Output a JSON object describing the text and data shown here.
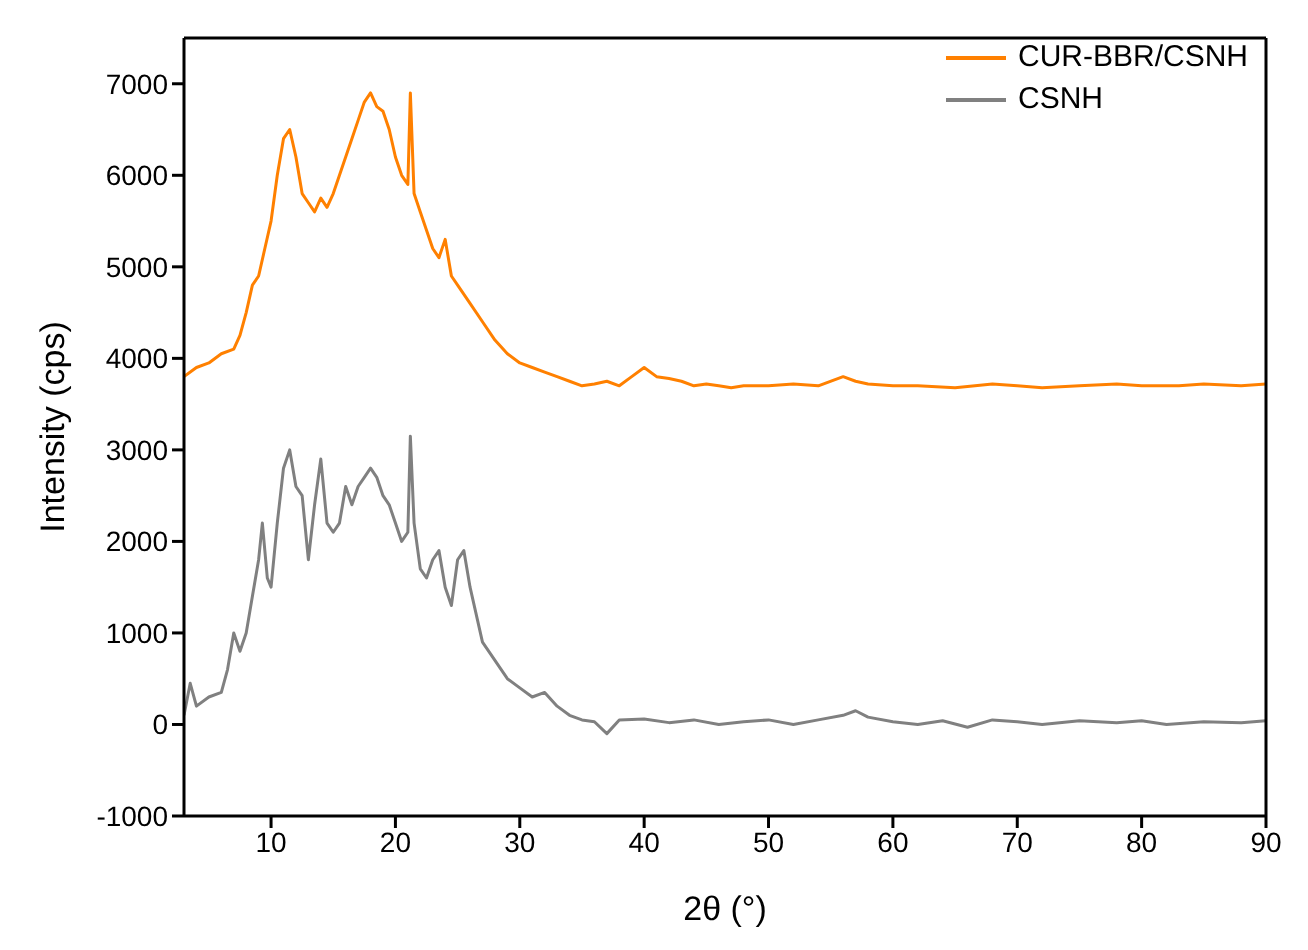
{
  "chart_data": {
    "type": "line",
    "xlabel": "2θ (°)",
    "ylabel": "Intensity (cps)",
    "xlim": [
      3,
      90
    ],
    "xticks": [
      10,
      20,
      30,
      40,
      50,
      60,
      70,
      80,
      90
    ],
    "ylim": [
      -1000,
      7500
    ],
    "yticks": [
      -1000,
      0,
      1000,
      2000,
      3000,
      4000,
      5000,
      6000,
      7000
    ],
    "legend": "top right",
    "marker": "none",
    "line_style": "solid",
    "series": [
      {
        "name": "CUR-BBR/CSNH",
        "color": "#ff8000",
        "x": [
          3,
          4,
          5,
          6,
          7,
          7.5,
          8,
          8.5,
          9,
          9.5,
          10,
          10.5,
          11,
          11.5,
          12,
          12.5,
          13,
          13.5,
          14,
          14.5,
          15,
          15.5,
          16,
          16.5,
          17,
          17.5,
          18,
          18.5,
          19,
          19.5,
          20,
          20.5,
          21,
          21.2,
          21.5,
          22,
          22.5,
          23,
          23.5,
          24,
          24.5,
          25,
          26,
          27,
          28,
          29,
          30,
          31,
          32,
          33,
          34,
          35,
          36,
          37,
          38,
          39,
          40,
          41,
          42,
          43,
          44,
          45,
          46,
          47,
          48,
          50,
          52,
          54,
          56,
          57,
          58,
          60,
          62,
          65,
          68,
          70,
          72,
          75,
          78,
          80,
          83,
          85,
          88,
          90
        ],
        "values": [
          3800,
          3900,
          3950,
          4050,
          4100,
          4250,
          4500,
          4800,
          4900,
          5200,
          5500,
          6000,
          6400,
          6500,
          6200,
          5800,
          5700,
          5600,
          5750,
          5650,
          5800,
          6000,
          6200,
          6400,
          6600,
          6800,
          6900,
          6750,
          6700,
          6500,
          6200,
          6000,
          5900,
          6900,
          5800,
          5600,
          5400,
          5200,
          5100,
          5300,
          4900,
          4800,
          4600,
          4400,
          4200,
          4050,
          3950,
          3900,
          3850,
          3800,
          3750,
          3700,
          3720,
          3750,
          3700,
          3800,
          3900,
          3800,
          3780,
          3750,
          3700,
          3720,
          3700,
          3680,
          3700,
          3700,
          3720,
          3700,
          3800,
          3750,
          3720,
          3700,
          3700,
          3680,
          3720,
          3700,
          3680,
          3700,
          3720,
          3700,
          3700,
          3720,
          3700,
          3720
        ]
      },
      {
        "name": "CSNH",
        "color": "#808080",
        "x": [
          3,
          3.5,
          4,
          5,
          6,
          6.5,
          7,
          7.5,
          8,
          8.5,
          9,
          9.3,
          9.7,
          10,
          10.5,
          11,
          11.5,
          12,
          12.5,
          13,
          13.5,
          14,
          14.5,
          15,
          15.5,
          16,
          16.5,
          17,
          17.5,
          18,
          18.5,
          19,
          19.5,
          20,
          20.5,
          21,
          21.2,
          21.5,
          22,
          22.5,
          23,
          23.5,
          24,
          24.5,
          25,
          25.5,
          26,
          26.5,
          27,
          28,
          29,
          30,
          31,
          32,
          33,
          34,
          35,
          36,
          37,
          38,
          40,
          42,
          44,
          46,
          48,
          50,
          52,
          54,
          56,
          57,
          58,
          60,
          62,
          64,
          66,
          68,
          70,
          72,
          75,
          78,
          80,
          82,
          85,
          88,
          90
        ],
        "values": [
          100,
          450,
          200,
          300,
          350,
          600,
          1000,
          800,
          1000,
          1400,
          1800,
          2200,
          1600,
          1500,
          2200,
          2800,
          3000,
          2600,
          2500,
          1800,
          2400,
          2900,
          2200,
          2100,
          2200,
          2600,
          2400,
          2600,
          2700,
          2800,
          2700,
          2500,
          2400,
          2200,
          2000,
          2100,
          3150,
          2200,
          1700,
          1600,
          1800,
          1900,
          1500,
          1300,
          1800,
          1900,
          1500,
          1200,
          900,
          700,
          500,
          400,
          300,
          350,
          200,
          100,
          50,
          30,
          -100,
          50,
          60,
          20,
          50,
          0,
          30,
          50,
          0,
          50,
          100,
          150,
          80,
          30,
          0,
          40,
          -30,
          50,
          30,
          0,
          40,
          20,
          40,
          0,
          30,
          20,
          40
        ]
      }
    ]
  }
}
